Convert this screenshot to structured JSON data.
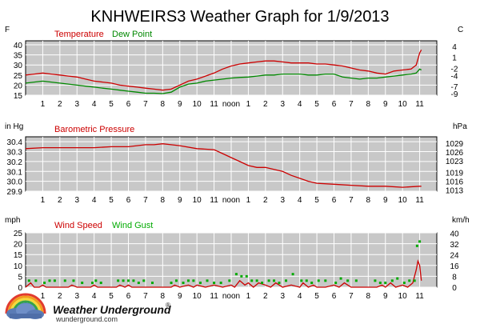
{
  "title": "KNHWEIRS3 Weather Graph for 1/9/2013",
  "colors": {
    "temperature": "#cc0000",
    "dew_point": "#008800",
    "pressure": "#cc0000",
    "wind_speed": "#cc0000",
    "wind_gust": "#00aa00",
    "axis": "#000000",
    "grid": "#ffffff",
    "plot_bg": "#c8c8c8",
    "background": "#ffffff"
  },
  "x_axis_ticks": [
    "1",
    "2",
    "3",
    "4",
    "5",
    "6",
    "7",
    "8",
    "9",
    "10",
    "11",
    "noon",
    "1",
    "2",
    "3",
    "4",
    "5",
    "6",
    "7",
    "8",
    "9",
    "10",
    "11"
  ],
  "logo": {
    "icon": "cloud-rainbow-icon",
    "name": "Weather Underground",
    "mark": "®",
    "url": "wunderground.com"
  },
  "chart_data": [
    {
      "type": "line",
      "title": "",
      "left_unit": "F",
      "right_unit": "C",
      "ylim": [
        15,
        42
      ],
      "y_ticks": [
        15,
        20,
        25,
        30,
        35,
        40
      ],
      "right_ticks": [
        {
          "label": "4",
          "at": 39.2
        },
        {
          "label": "1",
          "at": 33.8
        },
        {
          "label": "-2",
          "at": 28.4
        },
        {
          "label": "-4",
          "at": 24.8
        },
        {
          "label": "-7",
          "at": 19.4
        },
        {
          "label": "-9",
          "at": 15.8
        }
      ],
      "xlim": [
        0,
        24
      ],
      "x_label_hours": [
        1,
        2,
        3,
        4,
        5,
        6,
        7,
        8,
        9,
        10,
        11,
        12,
        13,
        14,
        15,
        16,
        17,
        18,
        19,
        20,
        21,
        22,
        23
      ],
      "grid": true,
      "series": [
        {
          "name": "Temperature",
          "color": "#cc0000",
          "x": [
            0.0,
            0.5,
            1.0,
            1.5,
            2.0,
            2.5,
            3.0,
            3.5,
            4.0,
            4.5,
            5.0,
            5.5,
            6.0,
            6.5,
            7.0,
            7.5,
            8.0,
            8.5,
            9.0,
            9.5,
            10.0,
            10.5,
            11.0,
            11.5,
            12.0,
            12.5,
            13.0,
            13.5,
            14.0,
            14.5,
            15.0,
            15.5,
            16.0,
            16.5,
            17.0,
            17.5,
            18.0,
            18.5,
            19.0,
            19.5,
            20.0,
            20.5,
            21.0,
            21.5,
            22.0,
            22.5,
            22.8,
            23.0,
            23.1
          ],
          "values": [
            25,
            25.5,
            26,
            25.5,
            25,
            24.5,
            24,
            23,
            22,
            21.5,
            21,
            20,
            19.5,
            19,
            18.5,
            18,
            17.5,
            18,
            20,
            22,
            23,
            24.5,
            26,
            28,
            29.5,
            30.5,
            31,
            31.5,
            32,
            32,
            31.5,
            31,
            31,
            31,
            30.5,
            30.5,
            30,
            29.5,
            28.5,
            27.5,
            27,
            26,
            25.5,
            27,
            27.5,
            28,
            30,
            36,
            37.5
          ]
        },
        {
          "name": "Dew Point",
          "color": "#008800",
          "x": [
            0.0,
            0.5,
            1.0,
            1.5,
            2.0,
            2.5,
            3.0,
            3.5,
            4.0,
            4.5,
            5.0,
            5.5,
            6.0,
            6.5,
            7.0,
            7.5,
            8.0,
            8.5,
            9.0,
            9.5,
            10.0,
            10.5,
            11.0,
            11.5,
            12.0,
            12.5,
            13.0,
            13.5,
            14.0,
            14.5,
            15.0,
            15.5,
            16.0,
            16.5,
            17.0,
            17.5,
            18.0,
            18.5,
            19.0,
            19.5,
            20.0,
            20.5,
            21.0,
            21.5,
            22.0,
            22.5,
            22.8,
            23.0,
            23.1
          ],
          "values": [
            21,
            21.5,
            22,
            21.5,
            21,
            20.5,
            20,
            19.5,
            19,
            18.5,
            18,
            17.5,
            17,
            16.5,
            16,
            16,
            15.8,
            16.5,
            19,
            20.5,
            21,
            22,
            22.5,
            23,
            23.5,
            23.8,
            24,
            24.5,
            25,
            25,
            25.5,
            25.5,
            25.5,
            25,
            25,
            25.5,
            25.5,
            24,
            23.5,
            23,
            23.5,
            23.5,
            24,
            24.5,
            25,
            25.5,
            26,
            28,
            27.5
          ]
        }
      ]
    },
    {
      "type": "line",
      "title": "",
      "left_unit": "in Hg",
      "right_unit": "hPa",
      "ylim": [
        29.9,
        30.45
      ],
      "y_ticks": [
        29.9,
        30.0,
        30.1,
        30.2,
        30.3,
        30.4
      ],
      "y_tick_labels": [
        "29.9",
        "30.0",
        "30.1",
        "30.2",
        "30.3",
        "30.4"
      ],
      "right_ticks": [
        {
          "label": "1029",
          "at": 30.387
        },
        {
          "label": "1026",
          "at": 30.298
        },
        {
          "label": "1023",
          "at": 30.209
        },
        {
          "label": "1019",
          "at": 30.091
        },
        {
          "label": "1016",
          "at": 30.002
        },
        {
          "label": "1013",
          "at": 29.914
        }
      ],
      "xlim": [
        0,
        24
      ],
      "x_label_hours": [
        1,
        2,
        3,
        4,
        5,
        6,
        7,
        8,
        9,
        10,
        11,
        12,
        13,
        14,
        15,
        16,
        17,
        18,
        19,
        20,
        21,
        22,
        23
      ],
      "grid": true,
      "series": [
        {
          "name": "Barometric Pressure",
          "color": "#cc0000",
          "x": [
            0,
            1,
            2,
            3,
            4,
            5,
            6,
            7,
            7.5,
            8,
            8.5,
            9,
            10,
            11,
            11.5,
            12,
            12.5,
            13,
            13.5,
            14,
            14.5,
            15,
            15.5,
            16,
            16.5,
            17,
            18,
            19,
            20,
            21,
            22,
            23,
            23.1
          ],
          "values": [
            30.33,
            30.34,
            30.34,
            30.34,
            30.34,
            30.35,
            30.35,
            30.37,
            30.37,
            30.38,
            30.37,
            30.36,
            30.33,
            30.32,
            30.28,
            30.24,
            30.2,
            30.16,
            30.14,
            30.14,
            30.12,
            30.1,
            30.06,
            30.03,
            30.0,
            29.98,
            29.97,
            29.96,
            29.95,
            29.95,
            29.94,
            29.95,
            29.95
          ]
        }
      ]
    },
    {
      "type": "line",
      "title": "",
      "left_unit": "mph",
      "right_unit": "km/h",
      "ylim": [
        0,
        25
      ],
      "y_ticks": [
        0,
        5,
        10,
        15,
        20,
        25
      ],
      "right_ticks": [
        {
          "label": "40",
          "at": 24.9
        },
        {
          "label": "32",
          "at": 19.9
        },
        {
          "label": "24",
          "at": 14.9
        },
        {
          "label": "16",
          "at": 9.9
        },
        {
          "label": "8",
          "at": 5.0
        },
        {
          "label": "0",
          "at": 0
        }
      ],
      "xlim": [
        0,
        24
      ],
      "x_label_hours": [
        1,
        2,
        3,
        4,
        5,
        6,
        7,
        8,
        9,
        10,
        11,
        12,
        13,
        14,
        15,
        16,
        17,
        18,
        19,
        20,
        21,
        22,
        23
      ],
      "grid": true,
      "series": [
        {
          "name": "Wind Speed",
          "color": "#cc0000",
          "x": [
            0,
            0.3,
            0.5,
            0.8,
            1.0,
            1.2,
            1.5,
            2.5,
            2.7,
            3.0,
            3.8,
            4.0,
            4.2,
            5.3,
            5.5,
            5.8,
            6.0,
            6.2,
            6.5,
            8.5,
            8.7,
            9.0,
            9.5,
            9.8,
            10.0,
            10.5,
            11.0,
            11.5,
            12.0,
            12.2,
            12.5,
            12.8,
            13.0,
            13.3,
            13.6,
            14.0,
            14.3,
            14.6,
            15.0,
            15.5,
            16.0,
            16.2,
            16.5,
            16.8,
            17.0,
            17.5,
            18.0,
            18.3,
            18.6,
            19.0,
            20.5,
            20.8,
            21.0,
            21.3,
            21.6,
            22.0,
            22.3,
            22.6,
            22.8,
            22.9,
            23.0,
            23.1
          ],
          "values": [
            0,
            2,
            0,
            0,
            1,
            0,
            0,
            0,
            1,
            0,
            0,
            1,
            0,
            0,
            1,
            0,
            1,
            0,
            0,
            0,
            1,
            0,
            1,
            0,
            1,
            0,
            1,
            0,
            1,
            0,
            3,
            1,
            2,
            0,
            2,
            1,
            0,
            2,
            0,
            1,
            0,
            2,
            0,
            1,
            0,
            0,
            1,
            0,
            2,
            0,
            0,
            1,
            0,
            2,
            0,
            1,
            0,
            2,
            8,
            12,
            10,
            3
          ]
        },
        {
          "name": "Wind Gust",
          "color": "#00aa00",
          "display": "points",
          "x": [
            0.2,
            0.6,
            1.1,
            1.4,
            1.7,
            2.3,
            2.8,
            3.3,
            3.9,
            4.1,
            4.4,
            5.4,
            5.7,
            6.0,
            6.3,
            6.6,
            6.9,
            7.4,
            8.5,
            8.8,
            9.2,
            9.5,
            9.8,
            10.2,
            10.6,
            11.0,
            11.4,
            11.9,
            12.3,
            12.6,
            12.9,
            13.2,
            13.5,
            13.8,
            14.2,
            14.5,
            14.8,
            15.2,
            15.6,
            16.1,
            16.4,
            16.7,
            17.1,
            17.5,
            18.1,
            18.4,
            18.8,
            19.3,
            20.4,
            20.7,
            21.0,
            21.4,
            21.7,
            22.1,
            22.4,
            22.7,
            22.85,
            23.0
          ],
          "values": [
            3,
            3,
            2,
            3,
            3,
            3,
            3,
            2,
            2,
            3,
            2,
            3,
            3,
            3,
            3,
            2,
            3,
            2,
            2,
            3,
            2,
            3,
            3,
            2,
            3,
            2,
            2,
            3,
            6,
            5,
            5,
            3,
            3,
            2,
            3,
            3,
            2,
            3,
            6,
            3,
            3,
            2,
            3,
            3,
            2,
            4,
            3,
            3,
            3,
            2,
            2,
            3,
            4,
            2,
            3,
            3,
            19,
            21
          ]
        }
      ]
    }
  ]
}
